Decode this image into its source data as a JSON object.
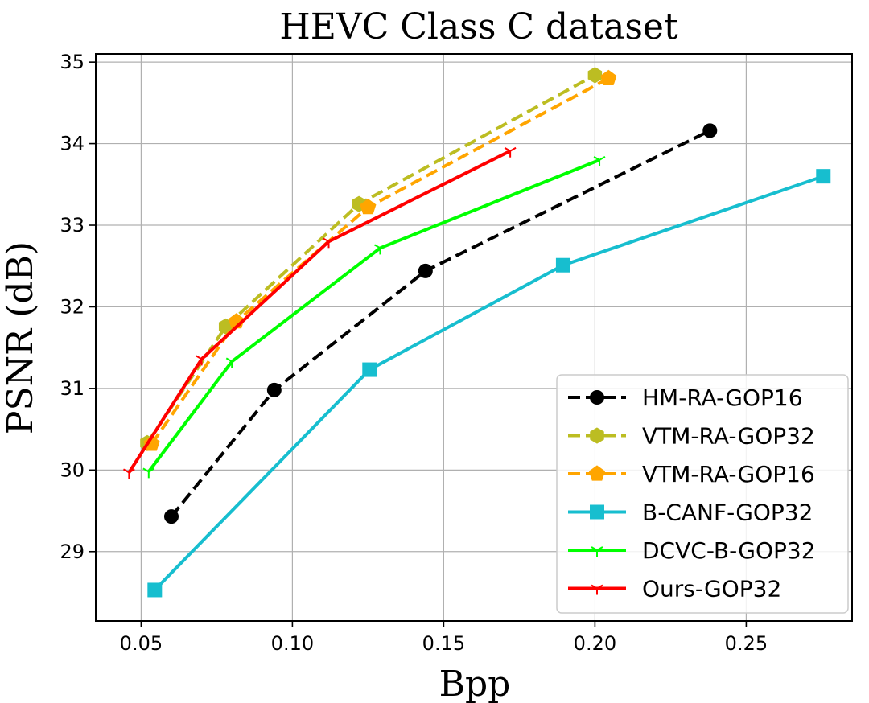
{
  "chart_data": {
    "type": "line",
    "title": "HEVC Class C dataset",
    "xlabel": "Bpp",
    "ylabel": "PSNR (dB)",
    "xlim": [
      0.035,
      0.285
    ],
    "ylim": [
      28.15,
      35.1
    ],
    "xticks": [
      0.05,
      0.1,
      0.15,
      0.2,
      0.25
    ],
    "xtick_labels": [
      "0.05",
      "0.10",
      "0.15",
      "0.20",
      "0.25"
    ],
    "yticks": [
      29,
      30,
      31,
      32,
      33,
      34,
      35
    ],
    "ytick_labels": [
      "29",
      "30",
      "31",
      "32",
      "33",
      "34",
      "35"
    ],
    "grid": true,
    "legend_position": "lower-right",
    "series": [
      {
        "name": "HM-RA-GOP16",
        "color": "#000000",
        "dash": "dashed",
        "marker": "circle",
        "x": [
          0.06,
          0.094,
          0.144,
          0.238
        ],
        "y": [
          29.43,
          30.98,
          32.44,
          34.16
        ]
      },
      {
        "name": "VTM-RA-GOP32",
        "color": "#bcbd22",
        "dash": "dashed",
        "marker": "hexagon",
        "x": [
          0.052,
          0.078,
          0.122,
          0.2
        ],
        "y": [
          30.33,
          31.76,
          33.26,
          34.84
        ]
      },
      {
        "name": "VTM-RA-GOP16",
        "color": "#ffa500",
        "dash": "dashed",
        "marker": "pentagon",
        "x": [
          0.0535,
          0.0815,
          0.125,
          0.2045
        ],
        "y": [
          30.32,
          31.82,
          33.22,
          34.8
        ]
      },
      {
        "name": "B-CANF-GOP32",
        "color": "#17becf",
        "dash": "solid",
        "marker": "square",
        "x": [
          0.0545,
          0.1255,
          0.1895,
          0.2755
        ],
        "y": [
          28.53,
          31.23,
          32.51,
          33.6
        ]
      },
      {
        "name": "DCVC-B-GOP32",
        "color": "#00ff00",
        "dash": "solid",
        "marker": "tri",
        "x": [
          0.0525,
          0.08,
          0.129,
          0.2015
        ],
        "y": [
          29.98,
          31.33,
          32.72,
          33.8
        ]
      },
      {
        "name": "Ours-GOP32",
        "color": "#ff0000",
        "dash": "solid",
        "marker": "tri",
        "x": [
          0.046,
          0.07,
          0.112,
          0.172
        ],
        "y": [
          29.97,
          31.36,
          32.8,
          33.91
        ]
      }
    ]
  }
}
